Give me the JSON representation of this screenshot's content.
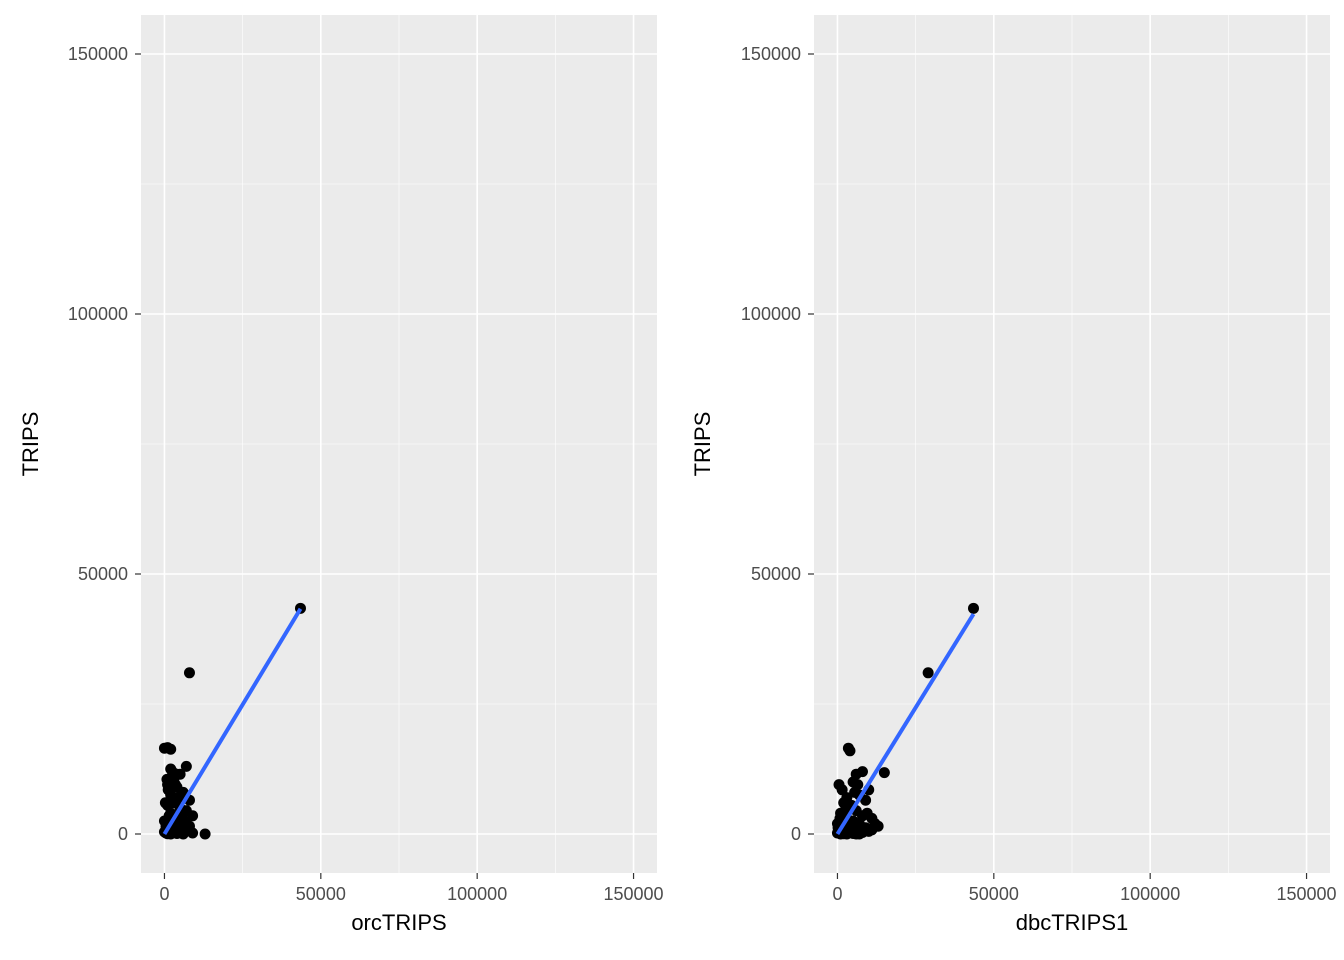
{
  "chart_data": [
    {
      "type": "scatter",
      "xlabel": "orcTRIPS",
      "ylabel": "TRIPS",
      "xlim": [
        -7500,
        157500
      ],
      "ylim": [
        -7500,
        157500
      ],
      "xticks": [
        0,
        50000,
        100000,
        150000
      ],
      "yticks": [
        0,
        50000,
        100000,
        150000
      ],
      "grid": true,
      "point_color": "#000000",
      "fit_line": {
        "color": "#3366ff",
        "x": [
          0,
          43500
        ],
        "y": [
          0,
          43300
        ]
      },
      "points": [
        [
          43500,
          43400
        ],
        [
          8000,
          31000
        ],
        [
          0,
          16500
        ],
        [
          2000,
          16300
        ],
        [
          1000,
          16600
        ],
        [
          2500,
          12000
        ],
        [
          7000,
          13000
        ],
        [
          5000,
          11500
        ],
        [
          3000,
          10500
        ],
        [
          1000,
          9500
        ],
        [
          4000,
          9000
        ],
        [
          6000,
          8000
        ],
        [
          2000,
          7500
        ],
        [
          8000,
          6500
        ],
        [
          3000,
          6000
        ],
        [
          1000,
          5500
        ],
        [
          5000,
          5000
        ],
        [
          7000,
          4500
        ],
        [
          2000,
          4000
        ],
        [
          9000,
          3500
        ],
        [
          4000,
          3000
        ],
        [
          0,
          2500
        ],
        [
          6000,
          2000
        ],
        [
          3000,
          1800
        ],
        [
          8000,
          1500
        ],
        [
          1000,
          1200
        ],
        [
          5000,
          1000
        ],
        [
          2000,
          800
        ],
        [
          7000,
          600
        ],
        [
          0,
          400
        ],
        [
          3000,
          300
        ],
        [
          9000,
          200
        ],
        [
          4000,
          100
        ],
        [
          1000,
          50
        ],
        [
          13000,
          0
        ],
        [
          6000,
          0
        ],
        [
          2000,
          0
        ],
        [
          500,
          200
        ],
        [
          1500,
          3500
        ],
        [
          2500,
          6500
        ],
        [
          3500,
          9500
        ],
        [
          4500,
          7000
        ],
        [
          5500,
          4000
        ],
        [
          6500,
          2500
        ],
        [
          800,
          10500
        ],
        [
          1200,
          8500
        ],
        [
          300,
          6000
        ],
        [
          4000,
          11500
        ],
        [
          2000,
          12500
        ],
        [
          500,
          1500
        ]
      ]
    },
    {
      "type": "scatter",
      "xlabel": "dbcTRIPS1",
      "ylabel": "TRIPS",
      "xlim": [
        -7500,
        157500
      ],
      "ylim": [
        -7500,
        157500
      ],
      "xticks": [
        0,
        50000,
        100000,
        150000
      ],
      "yticks": [
        0,
        50000,
        100000,
        150000
      ],
      "grid": true,
      "point_color": "#000000",
      "fit_line": {
        "color": "#3366ff",
        "x": [
          0,
          43500
        ],
        "y": [
          0,
          42300
        ]
      },
      "points": [
        [
          43500,
          43400
        ],
        [
          29000,
          31000
        ],
        [
          15000,
          11800
        ],
        [
          3500,
          16500
        ],
        [
          4000,
          16000
        ],
        [
          6000,
          11500
        ],
        [
          8000,
          12000
        ],
        [
          5000,
          10000
        ],
        [
          10000,
          8500
        ],
        [
          7000,
          7500
        ],
        [
          3000,
          7000
        ],
        [
          9000,
          6500
        ],
        [
          2000,
          6000
        ],
        [
          4000,
          5000
        ],
        [
          6000,
          4500
        ],
        [
          1000,
          4000
        ],
        [
          8000,
          3500
        ],
        [
          3000,
          3000
        ],
        [
          11000,
          3000
        ],
        [
          5000,
          2500
        ],
        [
          0,
          2000
        ],
        [
          7000,
          2000
        ],
        [
          2000,
          1500
        ],
        [
          9000,
          1200
        ],
        [
          4000,
          1000
        ],
        [
          1000,
          800
        ],
        [
          6000,
          600
        ],
        [
          3000,
          400
        ],
        [
          8000,
          300
        ],
        [
          0,
          200
        ],
        [
          5000,
          100
        ],
        [
          10000,
          500
        ],
        [
          11000,
          800
        ],
        [
          2000,
          50
        ],
        [
          7000,
          0
        ],
        [
          500,
          9500
        ],
        [
          1500,
          8500
        ],
        [
          2500,
          4500
        ],
        [
          3500,
          2200
        ],
        [
          4500,
          5500
        ],
        [
          5500,
          8000
        ],
        [
          6500,
          9500
        ],
        [
          12000,
          2000
        ],
        [
          9500,
          4000
        ],
        [
          1000,
          0
        ],
        [
          3000,
          0
        ],
        [
          6000,
          0
        ],
        [
          200,
          1200
        ],
        [
          800,
          3000
        ],
        [
          13000,
          1500
        ]
      ]
    }
  ]
}
